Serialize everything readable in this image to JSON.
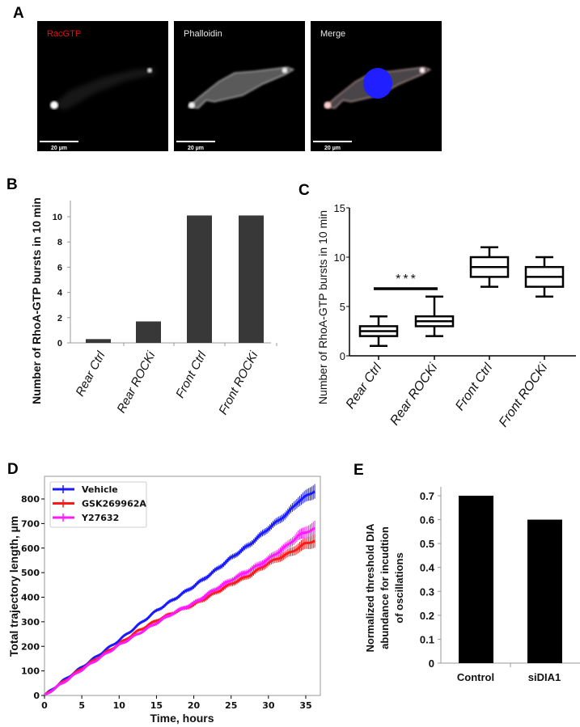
{
  "panels": {
    "a": "A",
    "b": "B",
    "c": "C",
    "d": "D",
    "e": "E"
  },
  "micrographs": [
    {
      "label": "RacGTP",
      "label_color": "#e01010",
      "scale_bar": "20 µm"
    },
    {
      "label": "Phalloidin",
      "label_color": "#e8e8e8",
      "scale_bar": "20 µm"
    },
    {
      "label": "Merge",
      "label_color": "#e8e8e8",
      "scale_bar": "20 µm"
    }
  ],
  "colors": {
    "bar_b": "#383838",
    "bar_e": "#000000",
    "vehicle": "#1a1aff",
    "gsk": "#ff1a1a",
    "y27632": "#ff1aff",
    "nucleus": "#1f1fff"
  },
  "chart_data": [
    {
      "panel": "B",
      "type": "bar",
      "categories": [
        "Rear Ctrl",
        "Rear ROCKi",
        "Front Ctrl",
        "Front ROCKi"
      ],
      "values": [
        0.3,
        1.7,
        10.1,
        10.1
      ],
      "ylabel": "Number of RhoA-GTP bursts in 10 min",
      "yticks": [
        "0",
        "2",
        "4",
        "6",
        "8",
        "10"
      ],
      "ylim": [
        0,
        11.5
      ],
      "grid": false
    },
    {
      "panel": "C",
      "type": "box",
      "categories": [
        "Rear Ctrl",
        "Rear ROCKi",
        "Front Ctrl",
        "Front ROCKi"
      ],
      "boxes": [
        {
          "min": 1,
          "q1": 2,
          "median": 2.5,
          "q3": 3,
          "max": 4
        },
        {
          "min": 2,
          "q1": 3,
          "median": 3.5,
          "q3": 4,
          "max": 6
        },
        {
          "min": 7,
          "q1": 8,
          "median": 9,
          "q3": 10,
          "max": 11
        },
        {
          "min": 6,
          "q1": 7,
          "median": 8,
          "q3": 9,
          "max": 10
        }
      ],
      "significance": {
        "between": [
          "Rear Ctrl",
          "Rear ROCKi"
        ],
        "label": "***",
        "y": 6.8
      },
      "ylabel": "Number of RhoA-GTP bursts in 10 min",
      "yticks": [
        "0",
        "5",
        "10",
        "15"
      ],
      "ylim": [
        0,
        15
      ],
      "grid": false
    },
    {
      "panel": "D",
      "type": "line",
      "xlabel": "Time, hours",
      "ylabel": "Total trajectory length, µm",
      "xticks": [
        "0",
        "5",
        "10",
        "15",
        "20",
        "25",
        "30",
        "35"
      ],
      "yticks": [
        "0",
        "100",
        "200",
        "300",
        "400",
        "500",
        "600",
        "700",
        "800"
      ],
      "xlim": [
        0,
        36.6
      ],
      "ylim": [
        0,
        890
      ],
      "grid": false,
      "legend": "top-left",
      "x": [
        0,
        2.5,
        5,
        7.5,
        10,
        12.5,
        15,
        17.5,
        20,
        22.5,
        25,
        27.5,
        30,
        32.5,
        34,
        35,
        36.3
      ],
      "series": [
        {
          "name": "Vehicle",
          "values": [
            0,
            60,
            115,
            170,
            225,
            285,
            345,
            395,
            445,
            500,
            560,
            615,
            680,
            740,
            790,
            810,
            835
          ],
          "errors": [
            0,
            2,
            3,
            4,
            5,
            6,
            7,
            8,
            9,
            10,
            11,
            12,
            14,
            16,
            20,
            24,
            30
          ]
        },
        {
          "name": "GSK269962A",
          "values": [
            0,
            55,
            110,
            160,
            210,
            262,
            305,
            340,
            370,
            412,
            455,
            490,
            540,
            575,
            600,
            620,
            630
          ],
          "errors": [
            0,
            2,
            3,
            4,
            5,
            6,
            7,
            8,
            9,
            10,
            11,
            12,
            14,
            16,
            20,
            24,
            28
          ]
        },
        {
          "name": "Y27632",
          "values": [
            0,
            52,
            105,
            155,
            205,
            250,
            295,
            340,
            375,
            425,
            470,
            510,
            555,
            610,
            650,
            665,
            680
          ],
          "errors": [
            0,
            2,
            3,
            4,
            5,
            6,
            7,
            8,
            9,
            10,
            11,
            12,
            14,
            16,
            20,
            24,
            30
          ]
        }
      ]
    },
    {
      "panel": "E",
      "type": "bar",
      "categories": [
        "Control",
        "siDIA1"
      ],
      "values": [
        0.7,
        0.6
      ],
      "ylabel_lines": [
        "Normalized threshold DIA",
        "abundance for incudtion",
        "of oscillations"
      ],
      "yticks": [
        "0",
        "0.1",
        "0.2",
        "0.3",
        "0.4",
        "0.5",
        "0.6",
        "0.7"
      ],
      "ylim": [
        0,
        0.74
      ],
      "grid": false
    }
  ]
}
